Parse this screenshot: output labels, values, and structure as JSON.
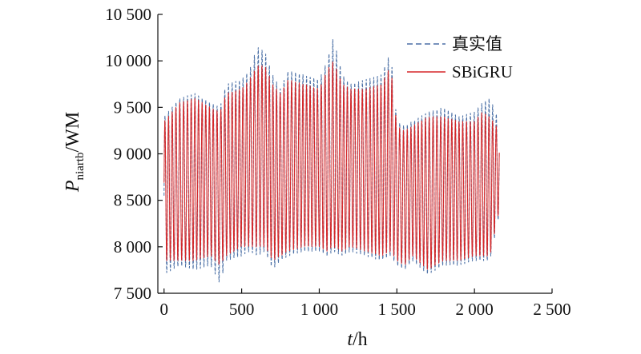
{
  "chart_data": {
    "type": "line",
    "xlabel_var": "t",
    "xlabel_unit": "/h",
    "ylabel_var": "P",
    "ylabel_sub": "niartb",
    "ylabel_unit": "/WM",
    "xlim": [
      -40,
      2500
    ],
    "ylim": [
      7500,
      10500
    ],
    "xticks": [
      0,
      500,
      1000,
      1500,
      2000,
      2500
    ],
    "xtick_labels": [
      "0",
      "500",
      "1 000",
      "1 500",
      "2 000",
      "2 500"
    ],
    "yticks": [
      7500,
      8000,
      8500,
      9000,
      9500,
      10000,
      10500
    ],
    "ytick_labels": [
      "7 500",
      "8 000",
      "8 500",
      "9 000",
      "9 500",
      "10 000",
      "10 500"
    ],
    "grid": false,
    "legend_position": "top-right",
    "series": [
      {
        "name": "真实值",
        "style": "dashed",
        "color": "#4a6fa5",
        "period_h": 24,
        "x": [
          0,
          100,
          200,
          300,
          360,
          400,
          500,
          550,
          600,
          650,
          700,
          750,
          800,
          900,
          1000,
          1050,
          1090,
          1150,
          1200,
          1300,
          1400,
          1460,
          1500,
          1550,
          1600,
          1700,
          1800,
          1900,
          2000,
          2050,
          2100,
          2160
        ],
        "upper_envelope": [
          9400,
          9600,
          9650,
          9550,
          9500,
          9750,
          9800,
          9900,
          10150,
          10100,
          9850,
          9700,
          9900,
          9850,
          9800,
          10000,
          10250,
          9850,
          9750,
          9800,
          9850,
          10100,
          9350,
          9300,
          9350,
          9450,
          9500,
          9400,
          9450,
          9550,
          9600,
          9350
        ],
        "lower_envelope": [
          7700,
          7800,
          7750,
          7800,
          7600,
          7850,
          7900,
          7950,
          7900,
          7950,
          7750,
          7850,
          7900,
          7950,
          7950,
          7900,
          7950,
          7900,
          7950,
          7900,
          7850,
          7900,
          7800,
          7750,
          7850,
          7700,
          7800,
          7800,
          7850,
          7850,
          7850,
          8350
        ]
      },
      {
        "name": "SBiGRU",
        "style": "solid",
        "color": "#d62728",
        "period_h": 24,
        "x": [
          0,
          100,
          200,
          300,
          360,
          400,
          500,
          550,
          600,
          650,
          700,
          750,
          800,
          900,
          1000,
          1050,
          1090,
          1150,
          1200,
          1300,
          1400,
          1460,
          1500,
          1550,
          1600,
          1700,
          1800,
          1900,
          2000,
          2050,
          2100,
          2160
        ],
        "upper_envelope": [
          9350,
          9550,
          9600,
          9500,
          9450,
          9650,
          9700,
          9800,
          9950,
          9950,
          9750,
          9650,
          9800,
          9750,
          9700,
          9900,
          10000,
          9750,
          9700,
          9700,
          9750,
          9950,
          9300,
          9250,
          9300,
          9400,
          9400,
          9350,
          9350,
          9450,
          9400,
          9250
        ],
        "lower_envelope": [
          7850,
          7850,
          7850,
          7900,
          7800,
          7900,
          8000,
          8000,
          8000,
          8000,
          7850,
          7900,
          7950,
          8000,
          8000,
          7950,
          8000,
          7950,
          8000,
          7950,
          7900,
          7950,
          7850,
          7800,
          7900,
          7750,
          7850,
          7850,
          7900,
          7900,
          7900,
          8400
        ]
      }
    ]
  }
}
